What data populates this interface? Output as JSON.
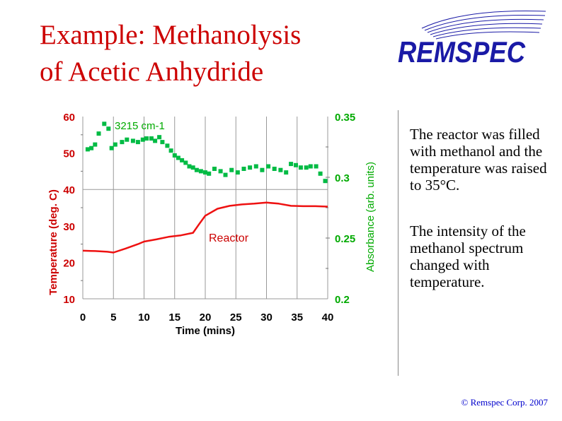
{
  "slide": {
    "title_line1": "Example: Methanolysis",
    "title_line2": "of Acetic Anhydride",
    "logo_text": "REMSPEC",
    "paragraph1": "The reactor was filled with methanol and the temperature was raised to 35°C.",
    "paragraph2": "The intensity of the methanol spectrum changed with temperature.",
    "copyright": "© Remspec Corp. 2007"
  },
  "colors": {
    "title": "#cc0000",
    "logo": "#1a1aa6",
    "temperature_axis": "#cc0000",
    "absorbance_axis": "#00aa00",
    "reactor_line": "#ee1111",
    "absorbance_points": "#00bb44",
    "copyright": "#0000cc"
  },
  "chart_data": {
    "type": "line",
    "xlabel": "Time (mins)",
    "ylabel_left": "Temperature (deg. C)",
    "ylabel_right": "Absorbance (arb. units)",
    "xlim": [
      0,
      40
    ],
    "ylim_left": [
      10,
      60
    ],
    "ylim_right": [
      0.2,
      0.35
    ],
    "x_ticks": [
      "0",
      "5",
      "10",
      "15",
      "20",
      "25",
      "30",
      "35",
      "40"
    ],
    "left_ticks": [
      "10",
      "20",
      "30",
      "40",
      "50",
      "60"
    ],
    "right_ticks": [
      "0.2",
      "0.25",
      "0.3",
      "0.35"
    ],
    "grid": true,
    "annotations": [
      "3215 cm-1",
      "Reactor"
    ],
    "series": [
      {
        "axis": "left",
        "style": "line",
        "x": [
          0,
          2,
          4,
          5,
          7,
          9,
          10,
          12,
          14,
          16,
          18,
          19,
          20,
          22,
          24,
          26,
          28,
          30,
          32,
          34,
          36,
          38,
          40
        ],
        "values": [
          23.2,
          23.1,
          22.9,
          22.7,
          23.8,
          25.0,
          25.7,
          26.3,
          27.0,
          27.4,
          28.1,
          30.5,
          32.8,
          34.7,
          35.5,
          35.9,
          36.1,
          36.4,
          36.1,
          35.5,
          35.4,
          35.4,
          35.3
        ]
      },
      {
        "axis": "right",
        "style": "points",
        "x": [
          0.8,
          1.4,
          2.0,
          2.6,
          3.5,
          4.2,
          4.7,
          5.3,
          6.4,
          7.2,
          8.2,
          9.0,
          9.8,
          10.4,
          11.2,
          11.8,
          12.5,
          13.0,
          13.8,
          14.4,
          15.0,
          15.6,
          16.2,
          16.8,
          17.4,
          18.0,
          18.6,
          19.3,
          20.0,
          20.6,
          21.5,
          22.5,
          23.3,
          24.3,
          25.3,
          26.3,
          27.3,
          28.3,
          29.3,
          30.3,
          31.3,
          32.3,
          33.2,
          34.0,
          34.8,
          35.6,
          36.5,
          37.2,
          38.1,
          38.8,
          39.6
        ],
        "values": [
          0.323,
          0.324,
          0.327,
          0.336,
          0.344,
          0.34,
          0.324,
          0.327,
          0.329,
          0.331,
          0.33,
          0.329,
          0.331,
          0.332,
          0.332,
          0.33,
          0.333,
          0.329,
          0.326,
          0.322,
          0.318,
          0.316,
          0.314,
          0.312,
          0.309,
          0.308,
          0.306,
          0.305,
          0.304,
          0.303,
          0.307,
          0.305,
          0.302,
          0.306,
          0.304,
          0.307,
          0.308,
          0.309,
          0.306,
          0.309,
          0.307,
          0.306,
          0.304,
          0.311,
          0.31,
          0.308,
          0.308,
          0.309,
          0.309,
          0.303,
          0.297
        ]
      }
    ]
  }
}
